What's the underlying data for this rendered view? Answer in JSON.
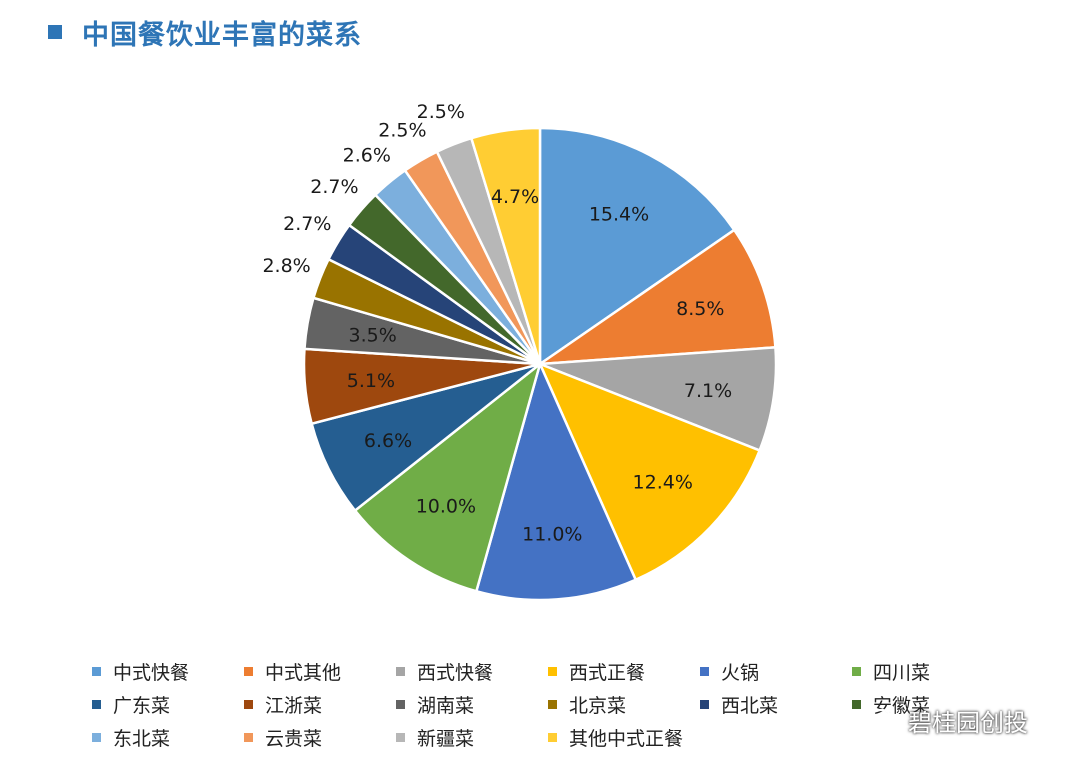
{
  "title": "中国餐饮业丰富的菜系",
  "watermark": "碧桂园创投",
  "chart_data": {
    "type": "pie",
    "title": "中国餐饮业丰富的菜系",
    "slices": [
      {
        "label": "中式快餐",
        "value": 15.4,
        "display": "15.4%",
        "color": "#5b9bd5"
      },
      {
        "label": "中式其他",
        "value": 8.5,
        "display": "8.5%",
        "color": "#ed7d31"
      },
      {
        "label": "西式快餐",
        "value": 7.1,
        "display": "7.1%",
        "color": "#a5a5a5"
      },
      {
        "label": "西式正餐",
        "value": 12.4,
        "display": "12.4%",
        "color": "#ffc000"
      },
      {
        "label": "火锅",
        "value": 11.0,
        "display": "11.0%",
        "color": "#4472c4"
      },
      {
        "label": "四川菜",
        "value": 10.0,
        "display": "10.0%",
        "color": "#70ad47"
      },
      {
        "label": "广东菜",
        "value": 6.6,
        "display": "6.6%",
        "color": "#255e91"
      },
      {
        "label": "江浙菜",
        "value": 5.1,
        "display": "5.1%",
        "color": "#9e480e"
      },
      {
        "label": "湖南菜",
        "value": 3.5,
        "display": "3.5%",
        "color": "#636363"
      },
      {
        "label": "北京菜",
        "value": 2.8,
        "display": "2.8%",
        "color": "#997300"
      },
      {
        "label": "西北菜",
        "value": 2.7,
        "display": "2.7%",
        "color": "#264478"
      },
      {
        "label": "安徽菜",
        "value": 2.7,
        "display": "2.7%",
        "color": "#43682b"
      },
      {
        "label": "东北菜",
        "value": 2.6,
        "display": "2.6%",
        "color": "#7cafdd"
      },
      {
        "label": "云贵菜",
        "value": 2.5,
        "display": "2.5%",
        "color": "#f1975a"
      },
      {
        "label": "新疆菜",
        "value": 2.5,
        "display": "2.5%",
        "color": "#b7b7b7"
      },
      {
        "label": "其他中式正餐",
        "value": 4.7,
        "display": "4.7%",
        "color": "#ffcd33"
      }
    ],
    "start_angle_deg": 0,
    "direction": "clockwise",
    "legend_position": "bottom"
  }
}
